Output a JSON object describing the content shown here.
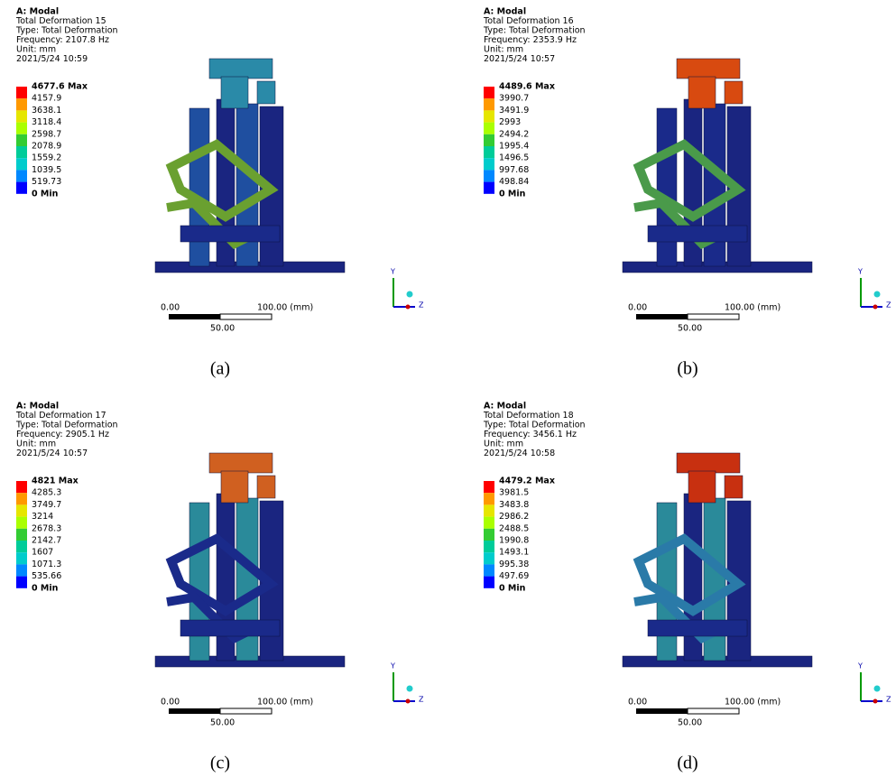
{
  "panels": [
    {
      "header": [
        "A: Modal",
        "Total Deformation 15",
        "Type: Total Deformation",
        "Frequency: 2107.8 Hz",
        "Unit: mm",
        "2021/5/24 10:59"
      ],
      "legend": [
        "4677.6 Max",
        "4157.9",
        "3638.1",
        "3118.4",
        "2598.7",
        "2078.9",
        "1559.2",
        "1039.5",
        "519.73",
        "0 Min"
      ],
      "scale": [
        "0.00",
        "100.00 (mm)",
        "50.00"
      ],
      "axes": [
        "Y",
        "Z"
      ],
      "caption": "(a)"
    },
    {
      "header": [
        "A: Modal",
        "Total Deformation 16",
        "Type: Total Deformation",
        "Frequency: 2353.9 Hz",
        "Unit: mm",
        "2021/5/24 10:57"
      ],
      "legend": [
        "4489.6 Max",
        "3990.7",
        "3491.9",
        "2993",
        "2494.2",
        "1995.4",
        "1496.5",
        "997.68",
        "498.84",
        "0 Min"
      ],
      "scale": [
        "0.00",
        "100.00 (mm)",
        "50.00"
      ],
      "axes": [
        "Y",
        "Z"
      ],
      "caption": "(b)"
    },
    {
      "header": [
        "A: Modal",
        "Total Deformation 17",
        "Type: Total Deformation",
        "Frequency: 2905.1 Hz",
        "Unit: mm",
        "2021/5/24 10:57"
      ],
      "legend": [
        "4821 Max",
        "4285.3",
        "3749.7",
        "3214",
        "2678.3",
        "2142.7",
        "1607",
        "1071.3",
        "535.66",
        "0 Min"
      ],
      "scale": [
        "0.00",
        "100.00 (mm)",
        "50.00"
      ],
      "axes": [
        "Y",
        "Z"
      ],
      "caption": "(c)"
    },
    {
      "header": [
        "A: Modal",
        "Total Deformation 18",
        "Type: Total Deformation",
        "Frequency: 3456.1 Hz",
        "Unit: mm",
        "2021/5/24 10:58"
      ],
      "legend": [
        "4479.2 Max",
        "3981.5",
        "3483.8",
        "2986.2",
        "2488.5",
        "1990.8",
        "1493.1",
        "995.38",
        "497.69",
        "0 Min"
      ],
      "scale": [
        "0.00",
        "100.00 (mm)",
        "50.00"
      ],
      "axes": [
        "Y",
        "Z"
      ],
      "caption": "(d)"
    }
  ]
}
